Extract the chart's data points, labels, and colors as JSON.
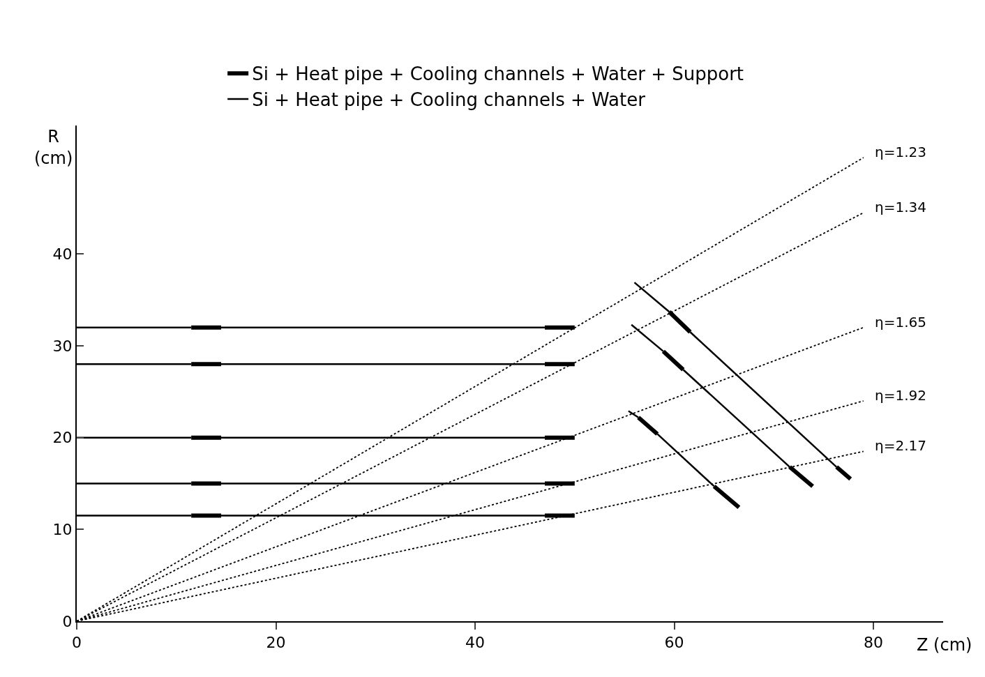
{
  "chart_data": {
    "type": "line",
    "xlabel": "Z (cm)",
    "ylabel": "R (cm)",
    "xlim": [
      0,
      87
    ],
    "ylim": [
      0,
      54
    ],
    "xticks": [
      0,
      20,
      40,
      60,
      80
    ],
    "yticks": [
      0,
      10,
      20,
      30,
      40
    ],
    "legend": "top",
    "marker": "none",
    "series": [
      {
        "name": "Si + Heat pipe + Cooling channels + Water + Support",
        "color": "#000000",
        "line_style": "solid",
        "x": [
          11.5,
          14.5
        ],
        "values": [
          32,
          32
        ]
      },
      {
        "color": "#000000",
        "line_style": "solid",
        "x": [
          47,
          50
        ],
        "values": [
          32,
          32
        ]
      },
      {
        "color": "#000000",
        "line_style": "solid",
        "x": [
          11.5,
          14.5
        ],
        "values": [
          28,
          28
        ]
      },
      {
        "color": "#000000",
        "line_style": "solid",
        "x": [
          47,
          50
        ],
        "values": [
          28,
          28
        ]
      },
      {
        "color": "#000000",
        "line_style": "solid",
        "x": [
          11.5,
          14.5
        ],
        "values": [
          20,
          20
        ]
      },
      {
        "color": "#000000",
        "line_style": "solid",
        "x": [
          47,
          50
        ],
        "values": [
          20,
          20
        ]
      },
      {
        "color": "#000000",
        "line_style": "solid",
        "x": [
          11.5,
          14.5
        ],
        "values": [
          15,
          15
        ]
      },
      {
        "color": "#000000",
        "line_style": "solid",
        "x": [
          47,
          50
        ],
        "values": [
          15,
          15
        ]
      },
      {
        "color": "#000000",
        "line_style": "solid",
        "x": [
          11.5,
          14.5
        ],
        "values": [
          11.5,
          11.5
        ]
      },
      {
        "color": "#000000",
        "line_style": "solid",
        "x": [
          47,
          50
        ],
        "values": [
          11.5,
          11.5
        ]
      },
      {
        "color": "#000000",
        "line_style": "solid",
        "x": [
          59.5,
          61.6
        ],
        "values": [
          33.7,
          31.5
        ]
      },
      {
        "color": "#000000",
        "line_style": "solid",
        "x": [
          76.3,
          77.7
        ],
        "values": [
          16.8,
          15.5
        ]
      },
      {
        "color": "#000000",
        "line_style": "solid",
        "x": [
          58.9,
          60.9
        ],
        "values": [
          29.4,
          27.4
        ]
      },
      {
        "color": "#000000",
        "line_style": "solid",
        "x": [
          71.6,
          73.9
        ],
        "values": [
          16.8,
          14.7
        ]
      },
      {
        "color": "#000000",
        "line_style": "solid",
        "x": [
          56.4,
          58.3
        ],
        "values": [
          22.2,
          20.4
        ]
      },
      {
        "color": "#000000",
        "line_style": "solid",
        "x": [
          64.0,
          66.5
        ],
        "values": [
          14.7,
          12.4
        ]
      },
      {
        "name": "Si + Heat pipe + Cooling channels + Water",
        "color": "#000000",
        "line_style": "solid",
        "x": [
          0,
          11.5
        ],
        "values": [
          32,
          32
        ]
      },
      {
        "color": "#000000",
        "line_style": "solid",
        "x": [
          14.5,
          47
        ],
        "values": [
          32,
          32
        ]
      },
      {
        "color": "#000000",
        "line_style": "solid",
        "x": [
          0,
          11.5
        ],
        "values": [
          28,
          28
        ]
      },
      {
        "color": "#000000",
        "line_style": "solid",
        "x": [
          14.5,
          47
        ],
        "values": [
          28,
          28
        ]
      },
      {
        "color": "#000000",
        "line_style": "solid",
        "x": [
          0,
          11.5
        ],
        "values": [
          20,
          20
        ]
      },
      {
        "color": "#000000",
        "line_style": "solid",
        "x": [
          14.5,
          47
        ],
        "values": [
          20,
          20
        ]
      },
      {
        "color": "#000000",
        "line_style": "solid",
        "x": [
          0,
          11.5
        ],
        "values": [
          15,
          15
        ]
      },
      {
        "color": "#000000",
        "line_style": "solid",
        "x": [
          14.5,
          47
        ],
        "values": [
          15,
          15
        ]
      },
      {
        "color": "#000000",
        "line_style": "solid",
        "x": [
          0,
          11.5
        ],
        "values": [
          11.5,
          11.5
        ]
      },
      {
        "color": "#000000",
        "line_style": "solid",
        "x": [
          14.5,
          47
        ],
        "values": [
          11.5,
          11.5
        ]
      },
      {
        "color": "#000000",
        "line_style": "solid",
        "x": [
          56.0,
          59.5
        ],
        "values": [
          36.9,
          33.7
        ]
      },
      {
        "color": "#000000",
        "line_style": "solid",
        "x": [
          61.6,
          76.3
        ],
        "values": [
          31.5,
          16.8
        ]
      },
      {
        "color": "#000000",
        "line_style": "solid",
        "x": [
          55.7,
          58.9
        ],
        "values": [
          32.3,
          29.4
        ]
      },
      {
        "color": "#000000",
        "line_style": "solid",
        "x": [
          60.9,
          71.6
        ],
        "values": [
          27.4,
          16.8
        ]
      },
      {
        "color": "#000000",
        "line_style": "solid",
        "x": [
          55.4,
          56.4
        ],
        "values": [
          22.9,
          22.2
        ]
      },
      {
        "color": "#000000",
        "line_style": "solid",
        "x": [
          58.3,
          64.0
        ],
        "values": [
          20.4,
          14.7
        ]
      },
      {
        "name": "η=1.23",
        "color": "#000000",
        "line_style": "dotted",
        "x": [
          0,
          79
        ],
        "values": [
          0,
          50.5
        ]
      },
      {
        "name": "η=1.34",
        "color": "#000000",
        "line_style": "dotted",
        "x": [
          0,
          79
        ],
        "values": [
          0,
          44.5
        ]
      },
      {
        "name": "η=1.65",
        "color": "#000000",
        "line_style": "dotted",
        "x": [
          0,
          79
        ],
        "values": [
          0,
          32
        ]
      },
      {
        "name": "η=1.92",
        "color": "#000000",
        "line_style": "dotted",
        "x": [
          0,
          79
        ],
        "values": [
          0,
          24
        ]
      },
      {
        "name": "η=2.17",
        "color": "#000000",
        "line_style": "dotted",
        "x": [
          0,
          79
        ],
        "values": [
          0,
          18.5
        ]
      }
    ]
  }
}
